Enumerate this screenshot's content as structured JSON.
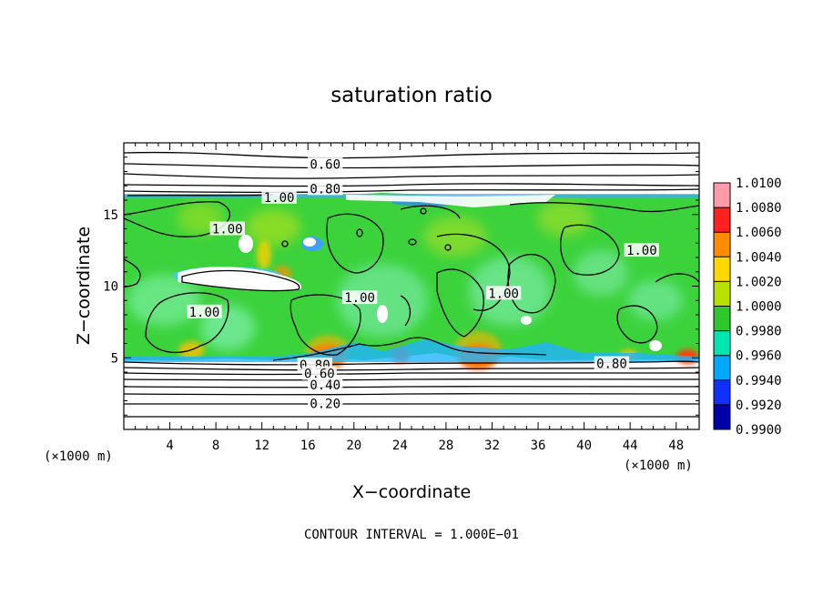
{
  "chart_data": {
    "type": "heatmap",
    "title": "saturation ratio",
    "xlabel": "X−coordinate",
    "ylabel": "Z−coordinate",
    "x_unit": "(×1000 m)",
    "y_unit": "(×1000 m)",
    "xlim": [
      0,
      50
    ],
    "ylim": [
      0,
      20
    ],
    "x_ticks": [
      4,
      8,
      12,
      16,
      20,
      24,
      28,
      32,
      36,
      40,
      44,
      48
    ],
    "y_ticks": [
      5,
      10,
      15
    ],
    "colorbar": {
      "levels": [
        "1.0100",
        "1.0080",
        "1.0060",
        "1.0040",
        "1.0020",
        "1.0000",
        "0.9980",
        "0.9960",
        "0.9940",
        "0.9920",
        "0.9900"
      ],
      "colors": [
        "#ff9aa8",
        "#ff2020",
        "#ff8c00",
        "#ffd800",
        "#b8e000",
        "#2ec82e",
        "#00e6b0",
        "#00a8ff",
        "#1030ff",
        "#0000a8",
        "#6a00b0"
      ]
    },
    "contour_labels": [
      {
        "text": "0.60",
        "x": 17.5,
        "z": 18.5
      },
      {
        "text": "0.80",
        "x": 17.5,
        "z": 16.8
      },
      {
        "text": "1.00",
        "x": 13.5,
        "z": 16.2
      },
      {
        "text": "1.00",
        "x": 9.0,
        "z": 14.0
      },
      {
        "text": "1.00",
        "x": 7.0,
        "z": 8.2
      },
      {
        "text": "1.00",
        "x": 20.5,
        "z": 9.2
      },
      {
        "text": "1.00",
        "x": 33.0,
        "z": 9.5
      },
      {
        "text": "1.00",
        "x": 45.0,
        "z": 12.5
      },
      {
        "text": "0.80",
        "x": 16.6,
        "z": 4.5
      },
      {
        "text": "0.60",
        "x": 17.0,
        "z": 3.9
      },
      {
        "text": "0.40",
        "x": 17.5,
        "z": 3.1
      },
      {
        "text": "0.20",
        "x": 17.5,
        "z": 1.8
      },
      {
        "text": "0.80",
        "x": 42.4,
        "z": 4.6
      }
    ],
    "contour_interval": "CONTOUR INTERVAL = 1.000E−01"
  }
}
